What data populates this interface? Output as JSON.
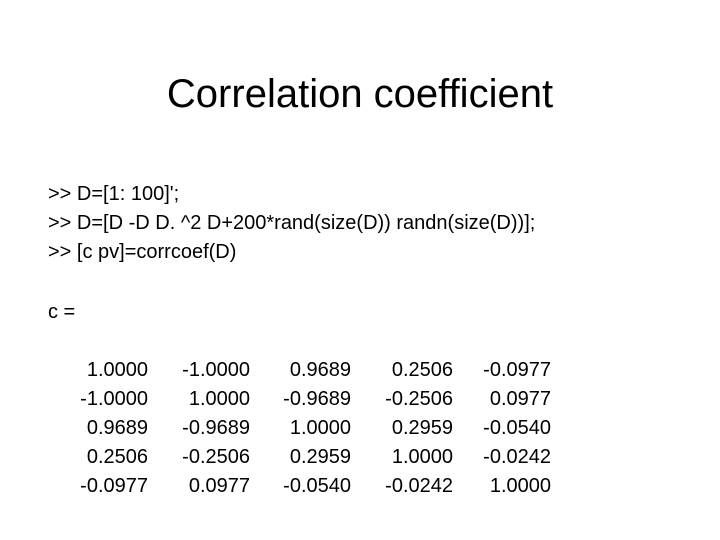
{
  "slide": {
    "title": "Correlation coefficient",
    "commands": [
      ">> D=[1: 100]';",
      ">> D=[D -D D. ^2 D+200*rand(size(D)) randn(size(D))];",
      ">> [c pv]=corrcoef(D)"
    ],
    "result_label": "c =",
    "matrix": [
      [
        "1.0000",
        "-1.0000",
        "0.9689",
        "0.2506",
        "-0.0977"
      ],
      [
        "-1.0000",
        "1.0000",
        "-0.9689",
        "-0.2506",
        "0.0977"
      ],
      [
        "0.9689",
        "-0.9689",
        "1.0000",
        "0.2959",
        "-0.0540"
      ],
      [
        "0.2506",
        "-0.2506",
        "0.2959",
        "1.0000",
        "-0.0242"
      ],
      [
        "-0.0977",
        "0.0977",
        "-0.0540",
        "-0.0242",
        "1.0000"
      ]
    ]
  }
}
